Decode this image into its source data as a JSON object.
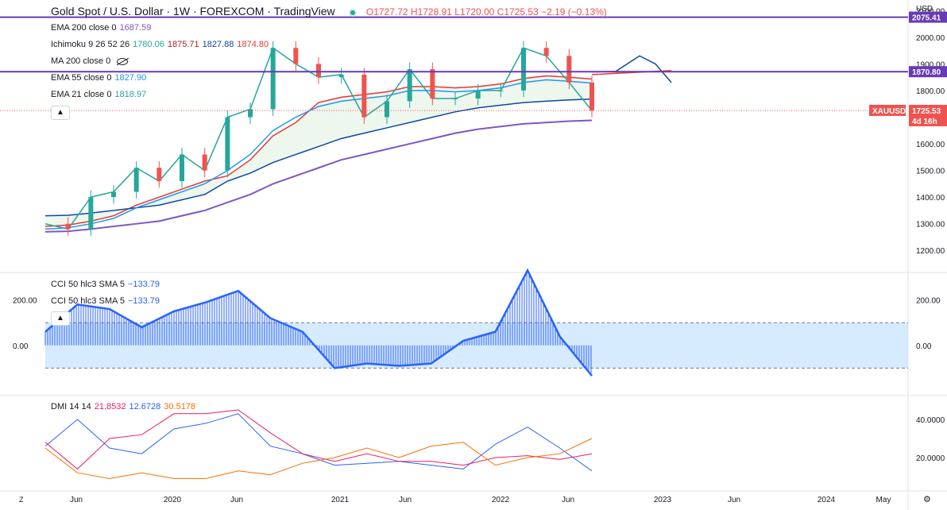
{
  "header": {
    "title": "Gold Spot / U.S. Dollar · 1W · FOREXCOM · TradingView",
    "ohlc": "O1727.72 H1728.91 L1720.00 C1725.53 −2.19 (−0.13%)"
  },
  "currency": "USD",
  "legend_main": [
    {
      "label": "EMA 200 close 0",
      "value": "1687.59",
      "color": "#7e57c2"
    },
    {
      "label": "Ichimoku 9 26 52 26",
      "value": "",
      "values": [
        {
          "v": "1780.06",
          "color": "#26a69a"
        },
        {
          "v": "1875.71",
          "color": "#b71c1c"
        },
        {
          "v": "1827.88",
          "color": "#0d47a1"
        },
        {
          "v": "1874.80",
          "color": "#e53935"
        }
      ]
    },
    {
      "label": "MA 200 close 0",
      "value": "",
      "hidden": true
    },
    {
      "label": "EMA 55 close 0",
      "value": "1827.90",
      "color": "#2196f3"
    },
    {
      "label": "EMA 21 close 0",
      "value": "1818.97",
      "color": "#26a69a"
    }
  ],
  "legend_cci": [
    {
      "label": "CCI 50 hlc3 SMA 5",
      "value": "−133.79"
    },
    {
      "label": "CCI 50 hlc3 SMA 5",
      "value": "−133.79"
    }
  ],
  "legend_dmi": {
    "label": "DMI 14 14",
    "values": [
      {
        "v": "21.8532",
        "color": "#e91e63"
      },
      {
        "v": "12.6728",
        "color": "#2962ff"
      },
      {
        "v": "30.5178",
        "color": "#ff6d00"
      }
    ]
  },
  "price_labels": [
    {
      "text": "2075.41",
      "bg": "#673ab7",
      "value": 2075.41
    },
    {
      "text": "1870.80",
      "bg": "#673ab7",
      "value": 1870.8
    },
    {
      "text": "XAUUSD",
      "bg": "#ef5350",
      "value": 1725.53
    },
    {
      "text": "1725.53",
      "bg": "#ef5350",
      "value": 1725.53
    },
    {
      "text": "4d 16h",
      "bg": "#ef5350",
      "value": 1700
    }
  ],
  "time_labels": [
    "Jun",
    "2020",
    "Jun",
    "2021",
    "Jun",
    "2022",
    "Jun",
    "2023",
    "Jun",
    "2024",
    "May"
  ],
  "chart_data": [
    {
      "type": "line",
      "title": "Gold Spot / U.S. Dollar, 1W, FOREXCOM",
      "ylim": [
        1150,
        2110
      ],
      "yticks": [
        "2100.00",
        "2000.00",
        "1900.00",
        "1800.00",
        "1700.00",
        "1600.00",
        "1500.00",
        "1400.00",
        "1300.00",
        "1200.00"
      ],
      "horizontal_lines": [
        2075.41,
        1870.8
      ],
      "series": [
        {
          "name": "XAUUSD close",
          "color": "#26a69a",
          "x": [
            "2019-03",
            "2019-05",
            "2019-06",
            "2019-07",
            "2019-09",
            "2019-11",
            "2020-01",
            "2020-03",
            "2020-04",
            "2020-06",
            "2020-08",
            "2020-10",
            "2020-12",
            "2021-01",
            "2021-03",
            "2021-04",
            "2021-06",
            "2021-08",
            "2021-10",
            "2021-12",
            "2022-01",
            "2022-03",
            "2022-04",
            "2022-06",
            "2022-07"
          ],
          "values": [
            1300,
            1280,
            1400,
            1420,
            1510,
            1460,
            1560,
            1500,
            1700,
            1730,
            1960,
            1900,
            1850,
            1860,
            1700,
            1760,
            1880,
            1770,
            1770,
            1800,
            1800,
            1960,
            1930,
            1830,
            1725
          ]
        },
        {
          "name": "EMA 200",
          "color": "#7e57c2",
          "values": [
            1270,
            1272,
            1280,
            1290,
            1300,
            1310,
            1330,
            1350,
            1380,
            1410,
            1450,
            1480,
            1510,
            1540,
            1560,
            1580,
            1600,
            1620,
            1640,
            1655,
            1665,
            1675,
            1680,
            1685,
            1688
          ]
        },
        {
          "name": "EMA 55",
          "color": "#2196f3",
          "values": [
            1280,
            1285,
            1300,
            1320,
            1360,
            1390,
            1420,
            1450,
            1500,
            1560,
            1650,
            1700,
            1740,
            1760,
            1770,
            1780,
            1800,
            1800,
            1795,
            1800,
            1810,
            1830,
            1840,
            1835,
            1828
          ]
        }
      ]
    },
    {
      "type": "area",
      "title": "CCI 50 hlc3 SMA 5",
      "ylim": [
        -200,
        300
      ],
      "yticks": [
        "200.00",
        "0.00"
      ],
      "bands": [
        100,
        -100
      ],
      "x": [
        "2019-03",
        "2019-06",
        "2019-09",
        "2019-12",
        "2020-03",
        "2020-06",
        "2020-08",
        "2020-10",
        "2021-01",
        "2021-03",
        "2021-06",
        "2021-08",
        "2021-10",
        "2021-12",
        "2022-02",
        "2022-03",
        "2022-05",
        "2022-07"
      ],
      "values": [
        60,
        180,
        160,
        80,
        150,
        190,
        240,
        120,
        60,
        -100,
        -80,
        -90,
        -80,
        20,
        60,
        330,
        40,
        -134
      ]
    },
    {
      "type": "line",
      "title": "DMI 14 14",
      "ylim": [
        5,
        50
      ],
      "yticks": [
        "40.0000",
        "20.0000"
      ],
      "x": [
        "2019-03",
        "2019-06",
        "2019-09",
        "2019-12",
        "2020-03",
        "2020-06",
        "2020-08",
        "2020-10",
        "2021-01",
        "2021-03",
        "2021-06",
        "2021-08",
        "2021-10",
        "2021-12",
        "2022-02",
        "2022-03",
        "2022-05",
        "2022-07"
      ],
      "series": [
        {
          "name": "+DI",
          "color": "#2962ff",
          "values": [
            26,
            40,
            25,
            22,
            35,
            38,
            43,
            26,
            22,
            16,
            17,
            18,
            16,
            14,
            27,
            36,
            25,
            13
          ]
        },
        {
          "name": "-DI",
          "color": "#e91e63",
          "values": [
            28,
            14,
            30,
            32,
            43,
            43,
            45,
            33,
            22,
            18,
            22,
            18,
            18,
            16,
            20,
            21,
            19,
            22
          ]
        },
        {
          "name": "ADX",
          "color": "#ff6d00",
          "values": [
            25,
            12,
            9,
            12,
            9,
            9,
            13,
            11,
            17,
            20,
            25,
            20,
            26,
            28,
            16,
            20,
            22,
            30
          ]
        }
      ]
    }
  ]
}
